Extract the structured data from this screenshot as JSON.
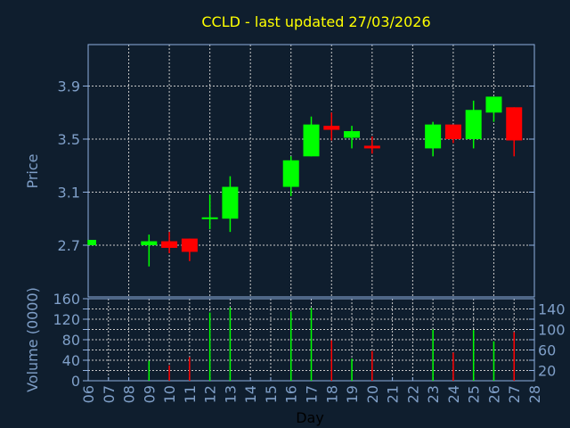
{
  "chart_data": {
    "type": "candlestick",
    "title": "CCLD - last updated 27/03/2026",
    "xlabel": "Day",
    "price_panel": {
      "ylabel": "Price",
      "yticks": [
        2.7,
        3.1,
        3.5,
        3.9
      ],
      "ylim": [
        2.3,
        4.2
      ],
      "grid": true
    },
    "volume_panel": {
      "ylabel": "Volume (0000)",
      "yticks": [
        0,
        20,
        40,
        60,
        80,
        100,
        120,
        140,
        160
      ],
      "ylim": [
        0,
        160
      ],
      "grid": true
    },
    "xticks": [
      "06",
      "07",
      "08",
      "09",
      "10",
      "11",
      "12",
      "13",
      "14",
      "15",
      "16",
      "17",
      "18",
      "19",
      "20",
      "21",
      "22",
      "23",
      "24",
      "25",
      "26",
      "27",
      "28"
    ],
    "candles": [
      {
        "day": "06",
        "open": 2.7,
        "high": 2.74,
        "low": 2.7,
        "close": 2.74,
        "volume": 0
      },
      {
        "day": "09",
        "open": 2.7,
        "high": 2.78,
        "low": 2.54,
        "close": 2.73,
        "volume": 39
      },
      {
        "day": "10",
        "open": 2.73,
        "high": 2.8,
        "low": 2.64,
        "close": 2.68,
        "volume": 30
      },
      {
        "day": "11",
        "open": 2.75,
        "high": 2.75,
        "low": 2.58,
        "close": 2.65,
        "volume": 46
      },
      {
        "day": "12",
        "open": 2.9,
        "high": 3.08,
        "low": 2.82,
        "close": 2.91,
        "volume": 133
      },
      {
        "day": "13",
        "open": 2.9,
        "high": 3.22,
        "low": 2.8,
        "close": 3.14,
        "volume": 143
      },
      {
        "day": "16",
        "open": 3.14,
        "high": 3.37,
        "low": 3.07,
        "close": 3.34,
        "volume": 135
      },
      {
        "day": "17",
        "open": 3.37,
        "high": 3.67,
        "low": 3.37,
        "close": 3.61,
        "volume": 142
      },
      {
        "day": "18",
        "open": 3.6,
        "high": 3.7,
        "low": 3.49,
        "close": 3.57,
        "volume": 79
      },
      {
        "day": "19",
        "open": 3.51,
        "high": 3.6,
        "low": 3.43,
        "close": 3.56,
        "volume": 43
      },
      {
        "day": "20",
        "open": 3.45,
        "high": 3.52,
        "low": 3.39,
        "close": 3.43,
        "volume": 58
      },
      {
        "day": "23",
        "open": 3.43,
        "high": 3.63,
        "low": 3.37,
        "close": 3.61,
        "volume": 100
      },
      {
        "day": "24",
        "open": 3.61,
        "high": 3.61,
        "low": 3.47,
        "close": 3.5,
        "volume": 55
      },
      {
        "day": "25",
        "open": 3.5,
        "high": 3.79,
        "low": 3.43,
        "close": 3.72,
        "volume": 99
      },
      {
        "day": "26",
        "open": 3.7,
        "high": 3.82,
        "low": 3.63,
        "close": 3.82,
        "volume": 77
      },
      {
        "day": "27",
        "open": 3.74,
        "high": 3.74,
        "low": 3.37,
        "close": 3.49,
        "volume": 95
      }
    ],
    "colors": {
      "up": "#00ff00",
      "down": "#ff0000",
      "title": "#ffff00",
      "axis": "#7f9fc8",
      "frame": "#8fb0e0",
      "grid": "#c8c8c8",
      "background": "#0f1e2e"
    }
  }
}
